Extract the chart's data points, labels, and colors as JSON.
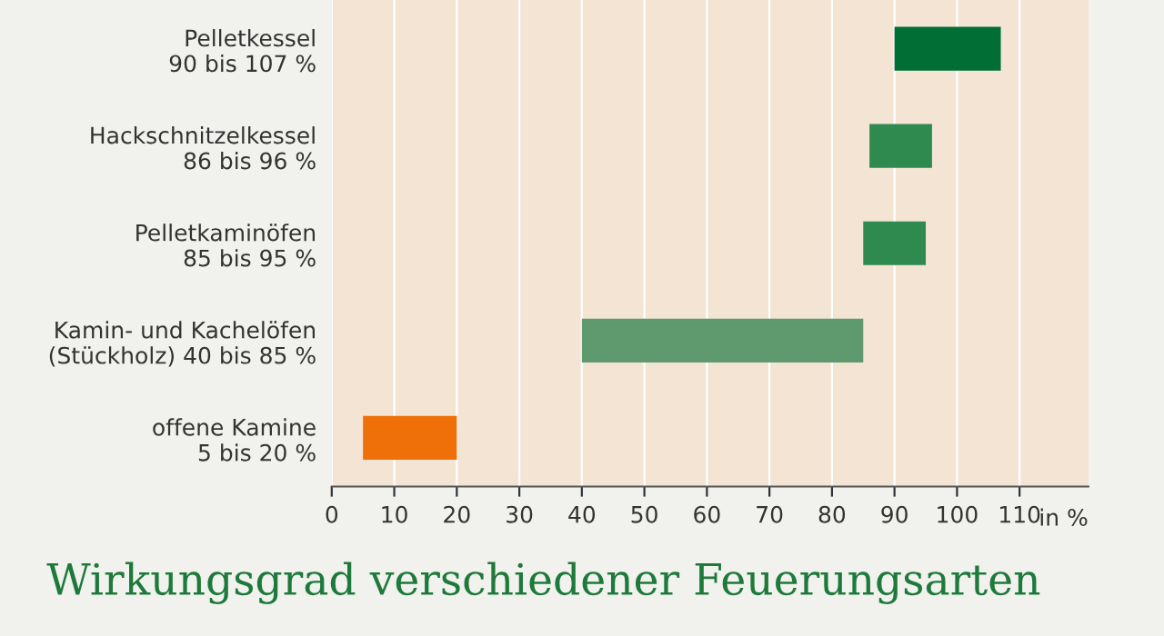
{
  "chart_data": {
    "type": "bar",
    "orientation": "horizontal",
    "title": "Wirkungsgrad verschiedener Feuerungsarten",
    "xlabel": "in %",
    "categories": [
      "Pelletkessel\n90 bis 107 %",
      "Hackschnitzelkessel\n86 bis 96 %",
      "Pelletkaminöfen\n85 bis 95 %",
      "Kamin- und Kachelöfen\n(Stückholz) 40 bis 85 %",
      "offene Kamine\n5 bis 20 %"
    ],
    "base": [
      90,
      86,
      85,
      40,
      5
    ],
    "values": [
      17,
      10,
      10,
      45,
      15
    ],
    "colors": [
      "#006e35",
      "#2e8a4e",
      "#2e8a4e",
      "#5f9a6f",
      "#ef7008"
    ],
    "xlim": [
      0,
      121
    ],
    "xticks": [
      0,
      10,
      20,
      30,
      40,
      50,
      60,
      70,
      80,
      90,
      100,
      110
    ],
    "grid": "x"
  }
}
